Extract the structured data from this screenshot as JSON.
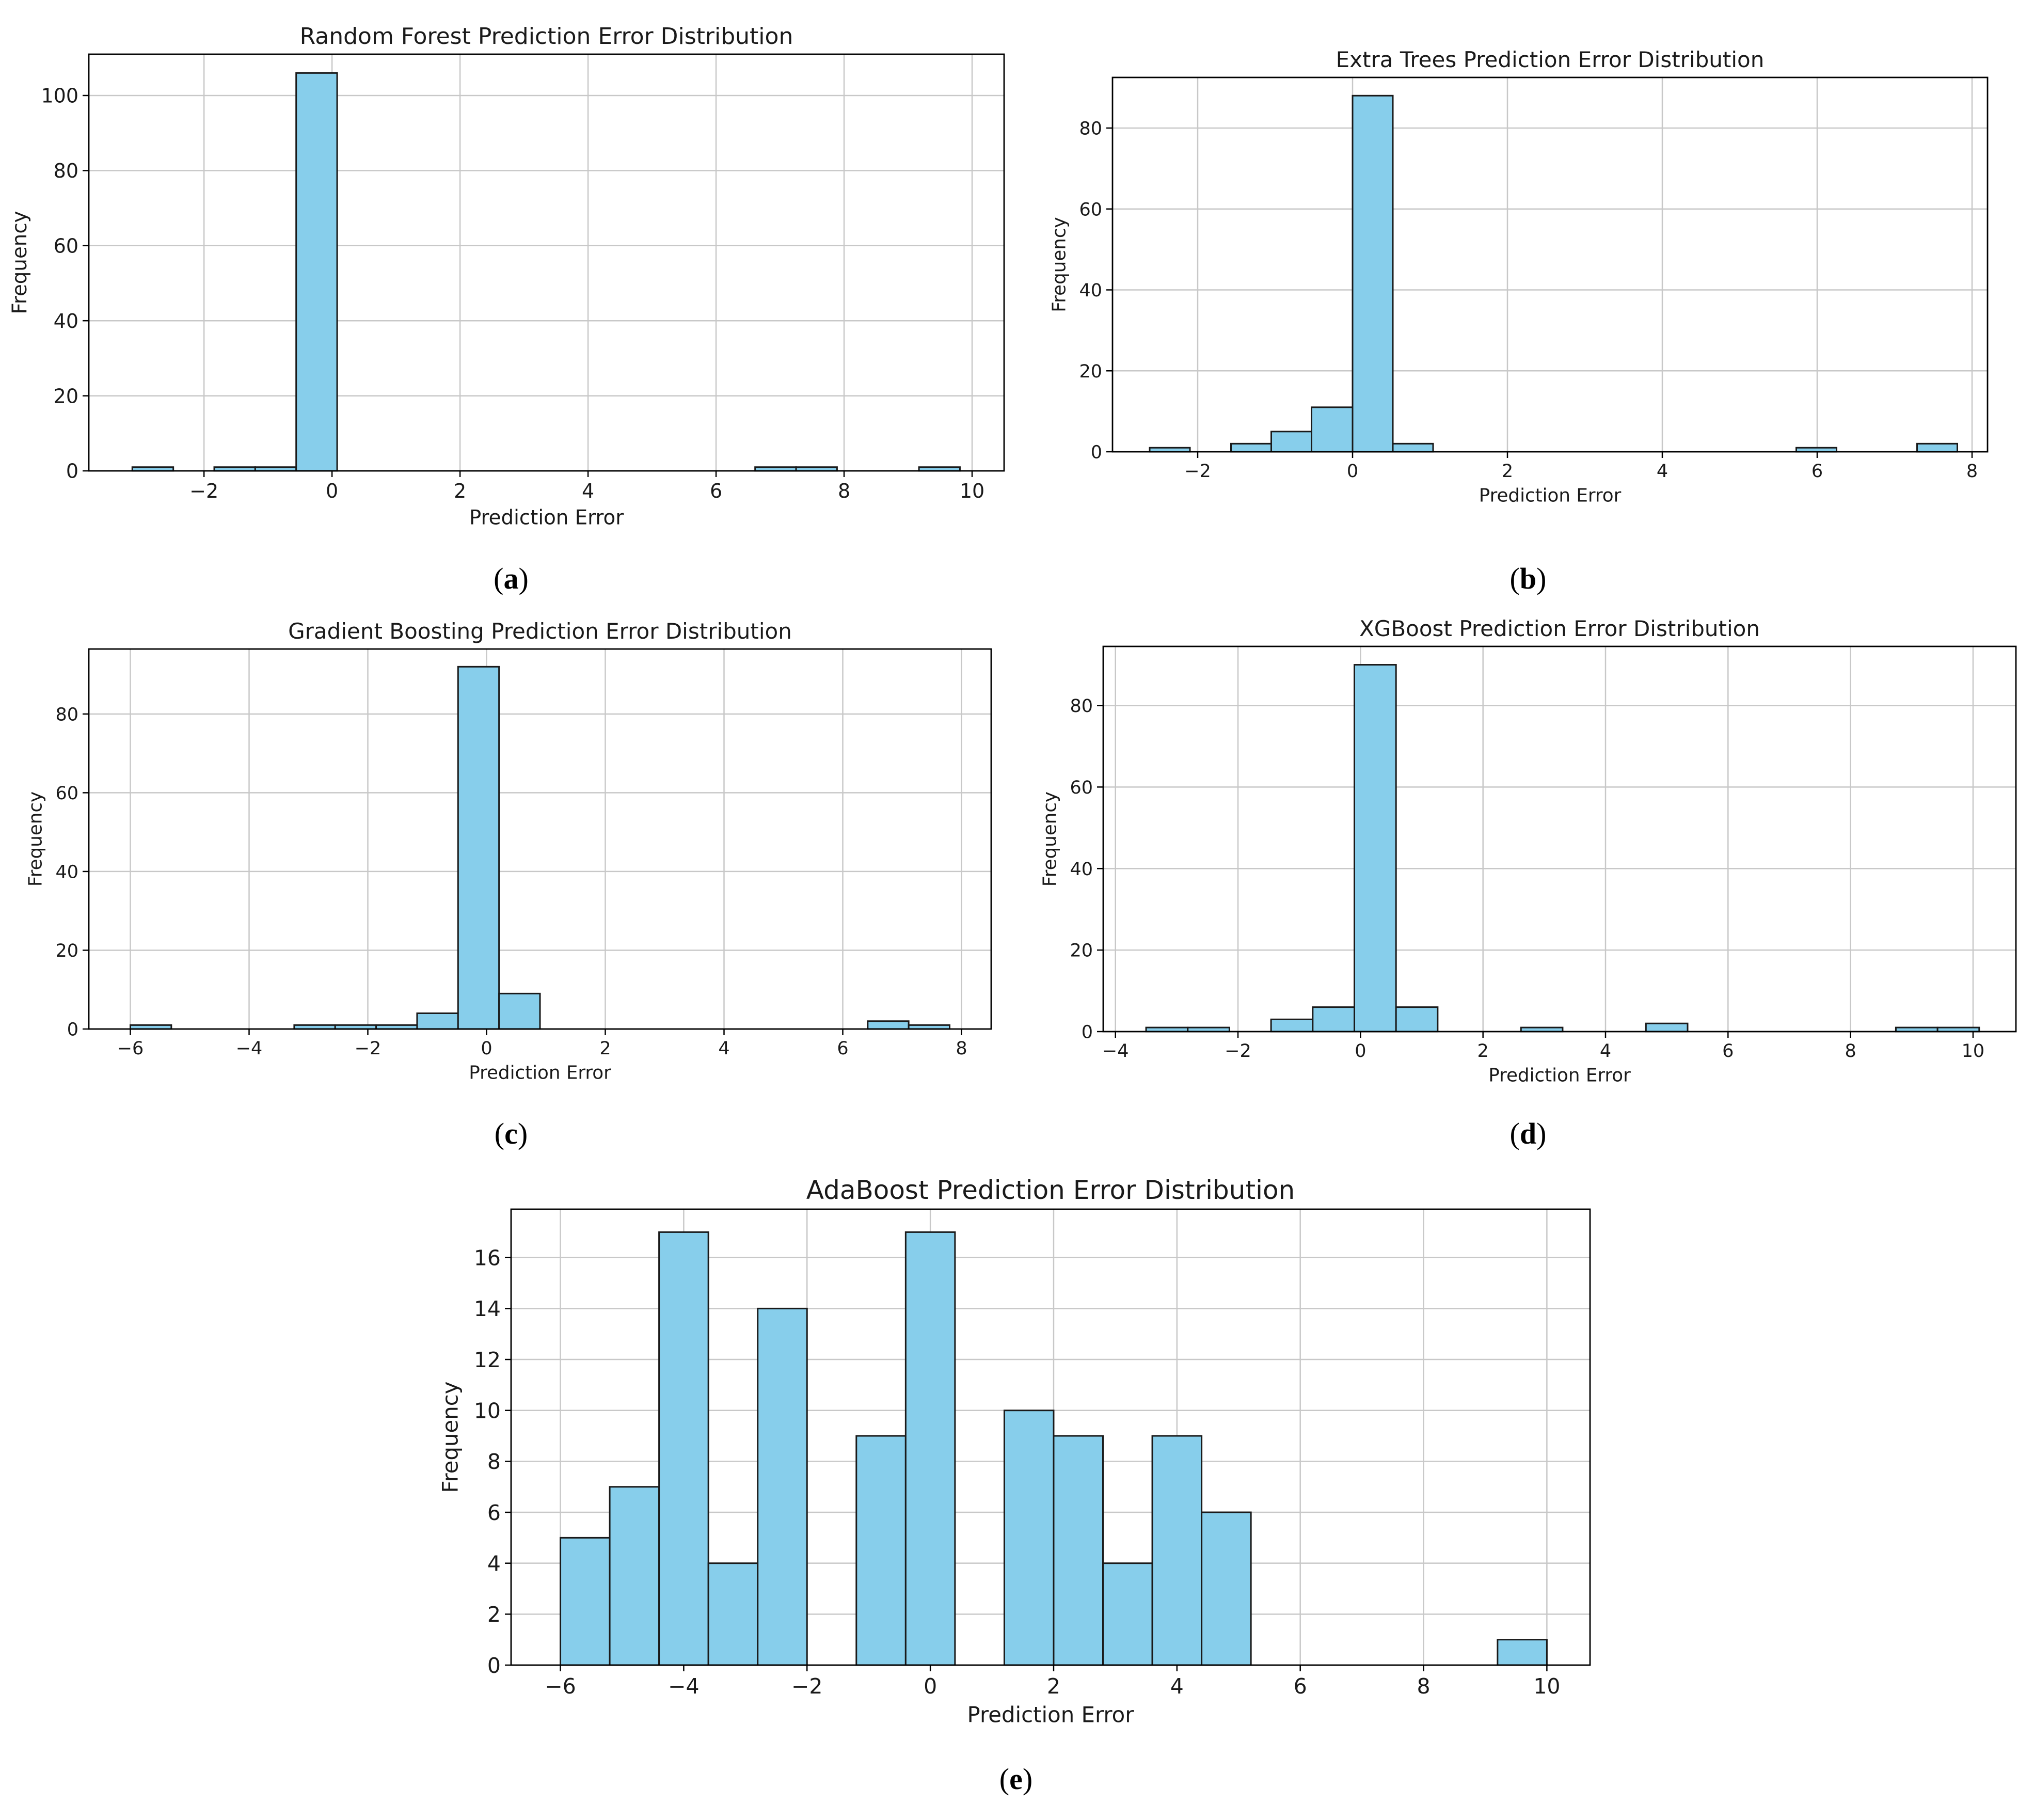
{
  "figure": {
    "panels": [
      {
        "id": "a",
        "label": "(a)",
        "letter": "a"
      },
      {
        "id": "b",
        "label": "(b)",
        "letter": "b"
      },
      {
        "id": "c",
        "label": "(c)",
        "letter": "c"
      },
      {
        "id": "d",
        "label": "(d)",
        "letter": "d"
      },
      {
        "id": "e",
        "label": "(e)",
        "letter": "e"
      }
    ]
  },
  "colors": {
    "bar_fill": "#87CEEB",
    "bar_edge": "#1a1a1a",
    "grid": "#c8c8c8",
    "axis": "#000000",
    "text": "#1a1a1a"
  },
  "chart_data": [
    {
      "id": "a",
      "type": "bar",
      "title": "Random Forest Prediction Error Distribution",
      "xlabel": "Prediction Error",
      "ylabel": "Frequency",
      "xlim": [
        -3.8,
        10.5
      ],
      "ylim": [
        0,
        111
      ],
      "xticks": [
        -2,
        0,
        2,
        4,
        6,
        8,
        10
      ],
      "yticks": [
        0,
        20,
        40,
        60,
        80,
        100
      ],
      "bins": [
        {
          "x0": -3.12,
          "x1": -2.48,
          "count": 1
        },
        {
          "x0": -1.84,
          "x1": -1.2,
          "count": 1
        },
        {
          "x0": -1.2,
          "x1": -0.56,
          "count": 1
        },
        {
          "x0": -0.56,
          "x1": 0.08,
          "count": 106
        },
        {
          "x0": 6.61,
          "x1": 7.25,
          "count": 1
        },
        {
          "x0": 7.25,
          "x1": 7.89,
          "count": 1
        },
        {
          "x0": 9.17,
          "x1": 9.81,
          "count": 1
        }
      ]
    },
    {
      "id": "b",
      "type": "bar",
      "title": "Extra Trees Prediction Error Distribution",
      "xlabel": "Prediction Error",
      "ylabel": "Frequency",
      "xlim": [
        -3.1,
        8.2
      ],
      "ylim": [
        0,
        92.5
      ],
      "xticks": [
        -2,
        0,
        2,
        4,
        6,
        8
      ],
      "yticks": [
        0,
        20,
        40,
        60,
        80
      ],
      "bins": [
        {
          "x0": -2.62,
          "x1": -2.1,
          "count": 1
        },
        {
          "x0": -1.57,
          "x1": -1.05,
          "count": 2
        },
        {
          "x0": -1.05,
          "x1": -0.53,
          "count": 5
        },
        {
          "x0": -0.53,
          "x1": 0.0,
          "count": 11
        },
        {
          "x0": 0.0,
          "x1": 0.52,
          "count": 88
        },
        {
          "x0": 0.52,
          "x1": 1.04,
          "count": 2
        },
        {
          "x0": 5.73,
          "x1": 6.25,
          "count": 1
        },
        {
          "x0": 7.29,
          "x1": 7.81,
          "count": 2
        }
      ]
    },
    {
      "id": "c",
      "type": "bar",
      "title": "Gradient Boosting Prediction Error Distribution",
      "xlabel": "Prediction Error",
      "ylabel": "Frequency",
      "xlim": [
        -6.7,
        8.5
      ],
      "ylim": [
        0,
        96.5
      ],
      "xticks": [
        -6,
        -4,
        -2,
        0,
        2,
        4,
        6,
        8
      ],
      "yticks": [
        0,
        20,
        40,
        60,
        80
      ],
      "bins": [
        {
          "x0": -6.0,
          "x1": -5.31,
          "count": 1
        },
        {
          "x0": -3.24,
          "x1": -2.55,
          "count": 1
        },
        {
          "x0": -2.55,
          "x1": -1.86,
          "count": 1
        },
        {
          "x0": -1.86,
          "x1": -1.17,
          "count": 1
        },
        {
          "x0": -1.17,
          "x1": -0.48,
          "count": 4
        },
        {
          "x0": -0.48,
          "x1": 0.21,
          "count": 92
        },
        {
          "x0": 0.21,
          "x1": 0.9,
          "count": 9
        },
        {
          "x0": 6.42,
          "x1": 7.11,
          "count": 2
        },
        {
          "x0": 7.11,
          "x1": 7.8,
          "count": 1
        }
      ]
    },
    {
      "id": "d",
      "type": "bar",
      "title": "XGBoost Prediction Error Distribution",
      "xlabel": "Prediction Error",
      "ylabel": "Frequency",
      "xlim": [
        -4.2,
        10.7
      ],
      "ylim": [
        0,
        94.5
      ],
      "xticks": [
        -4,
        -2,
        0,
        2,
        4,
        6,
        8,
        10
      ],
      "yticks": [
        0,
        20,
        40,
        60,
        80
      ],
      "bins": [
        {
          "x0": -3.5,
          "x1": -2.82,
          "count": 1
        },
        {
          "x0": -2.82,
          "x1": -2.14,
          "count": 1
        },
        {
          "x0": -1.46,
          "x1": -0.78,
          "count": 3
        },
        {
          "x0": -0.78,
          "x1": -0.1,
          "count": 6
        },
        {
          "x0": -0.1,
          "x1": 0.58,
          "count": 90
        },
        {
          "x0": 0.58,
          "x1": 1.26,
          "count": 6
        },
        {
          "x0": 2.62,
          "x1": 3.3,
          "count": 1
        },
        {
          "x0": 4.66,
          "x1": 5.34,
          "count": 2
        },
        {
          "x0": 8.74,
          "x1": 9.42,
          "count": 1
        },
        {
          "x0": 9.42,
          "x1": 10.1,
          "count": 1
        }
      ]
    },
    {
      "id": "e",
      "type": "bar",
      "title": "AdaBoost Prediction Error Distribution",
      "xlabel": "Prediction Error",
      "ylabel": "Frequency",
      "xlim": [
        -6.8,
        10.7
      ],
      "ylim": [
        0,
        17.9
      ],
      "xticks": [
        -6,
        -4,
        -2,
        0,
        2,
        4,
        6,
        8,
        10
      ],
      "yticks": [
        0,
        2,
        4,
        6,
        8,
        10,
        12,
        14,
        16
      ],
      "bins": [
        {
          "x0": -6.0,
          "x1": -5.2,
          "count": 5
        },
        {
          "x0": -5.2,
          "x1": -4.4,
          "count": 7
        },
        {
          "x0": -4.4,
          "x1": -3.6,
          "count": 17
        },
        {
          "x0": -3.6,
          "x1": -2.8,
          "count": 4
        },
        {
          "x0": -2.8,
          "x1": -2.0,
          "count": 14
        },
        {
          "x0": -1.2,
          "x1": -0.4,
          "count": 9
        },
        {
          "x0": -0.4,
          "x1": 0.4,
          "count": 17
        },
        {
          "x0": 1.2,
          "x1": 2.0,
          "count": 10
        },
        {
          "x0": 2.0,
          "x1": 2.8,
          "count": 9
        },
        {
          "x0": 2.8,
          "x1": 3.6,
          "count": 4
        },
        {
          "x0": 3.6,
          "x1": 4.4,
          "count": 9
        },
        {
          "x0": 4.4,
          "x1": 5.2,
          "count": 6
        },
        {
          "x0": 9.2,
          "x1": 10.0,
          "count": 1
        }
      ]
    }
  ]
}
